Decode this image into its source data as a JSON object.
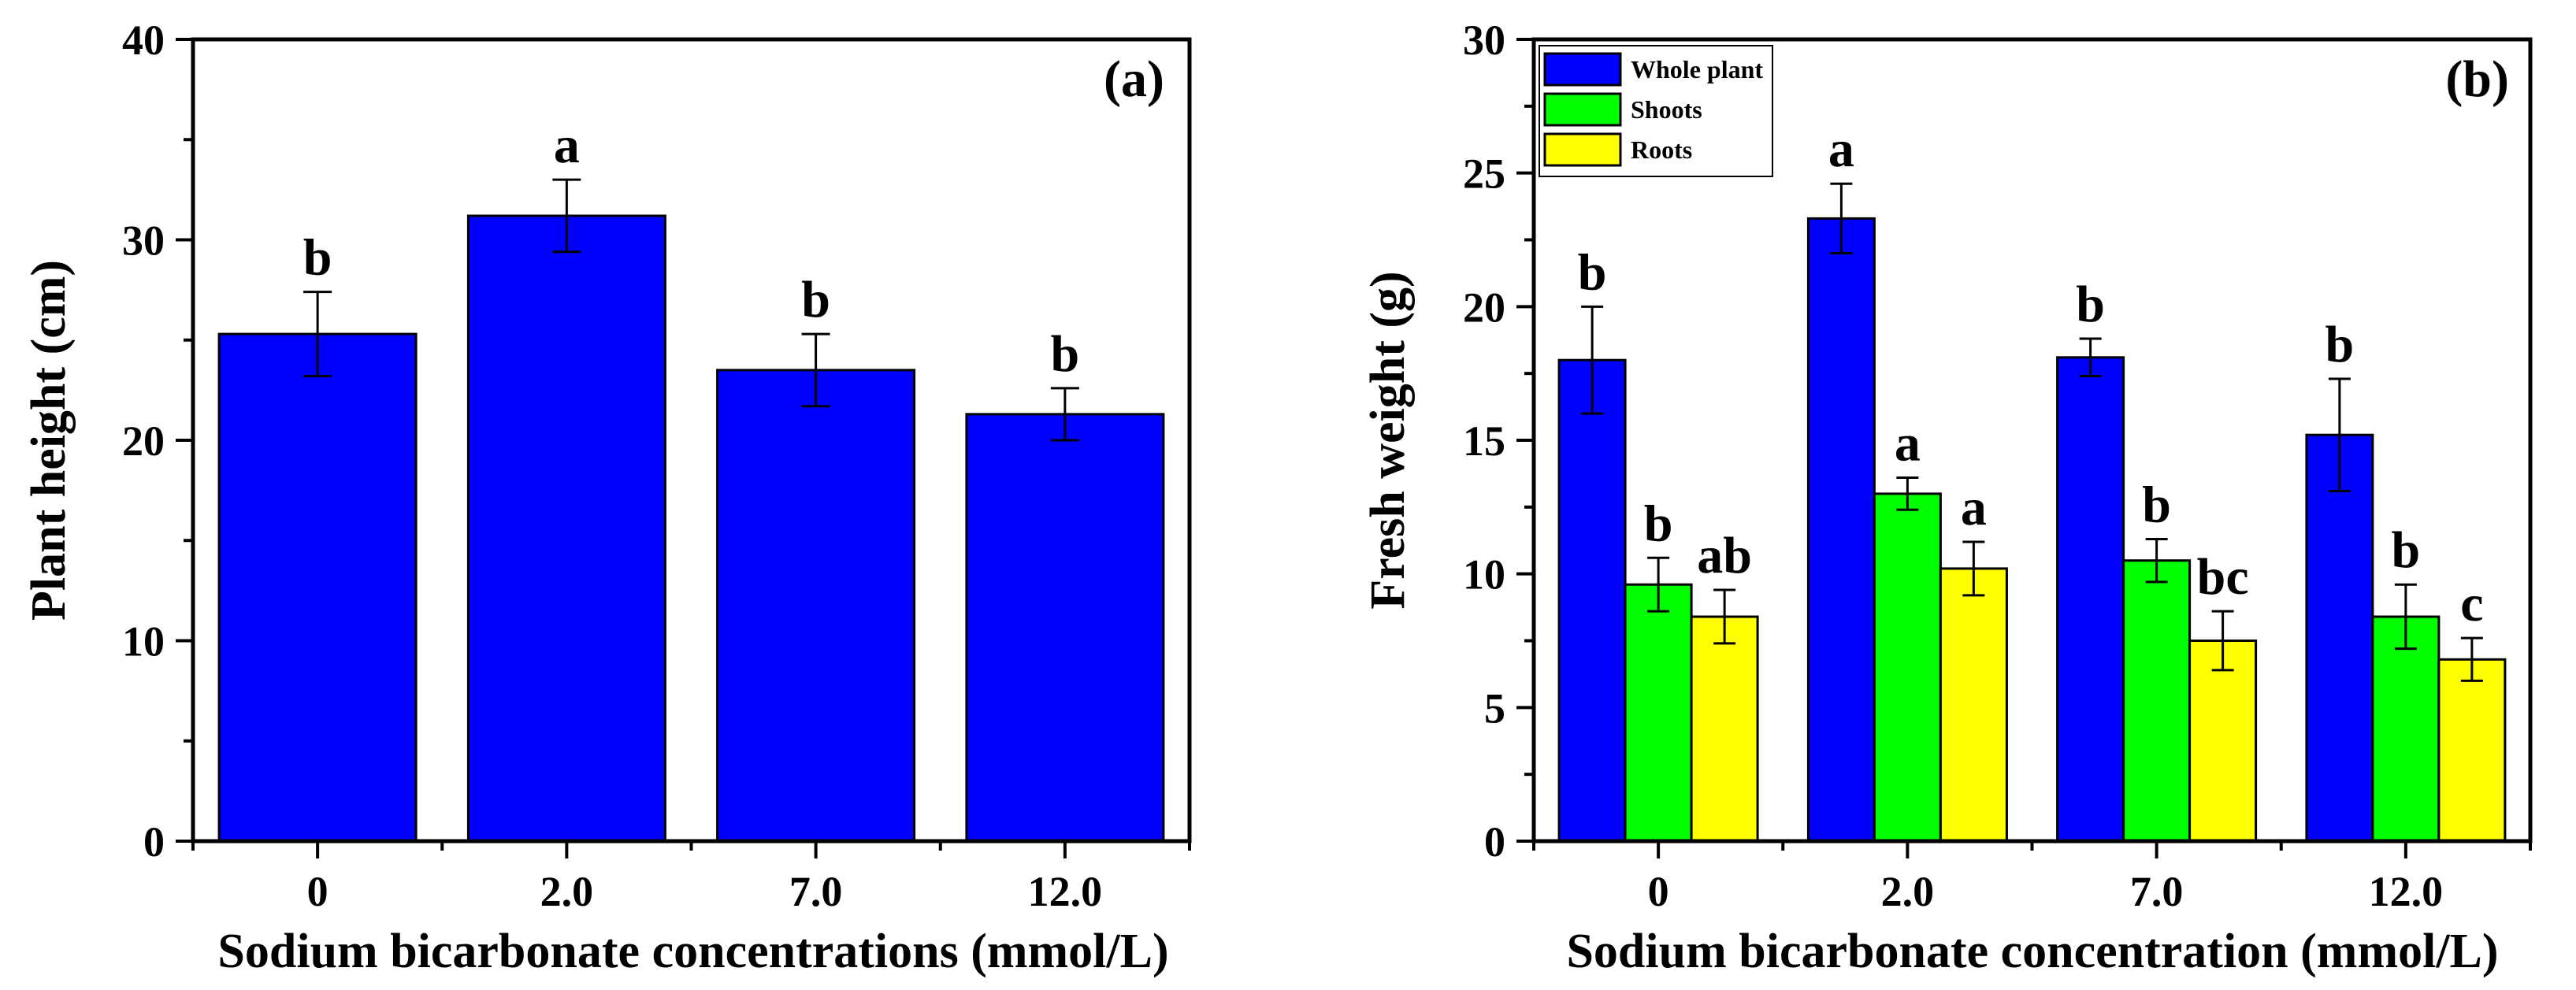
{
  "chart_data": [
    {
      "type": "bar",
      "panel_label": "(a)",
      "title": "",
      "xlabel": "Sodium bicarbonate concentrations (mmol/L)",
      "ylabel": "Plant height (cm)",
      "ylim": [
        0,
        40
      ],
      "yticks": [
        "0",
        "10",
        "20",
        "30",
        "40"
      ],
      "categories": [
        "0",
        "2.0",
        "7.0",
        "12.0"
      ],
      "series": [
        {
          "name": "Plant height",
          "color": "#0000ff",
          "values": [
            25.3,
            31.2,
            23.5,
            21.3
          ],
          "errors": [
            2.1,
            1.8,
            1.8,
            1.3
          ],
          "labels": [
            "b",
            "a",
            "b",
            "b"
          ]
        }
      ],
      "grid": false
    },
    {
      "type": "bar",
      "panel_label": "(b)",
      "title": "",
      "xlabel": "Sodium bicarbonate concentration (mmol/L)",
      "ylabel": "Fresh weight (g)",
      "ylim": [
        0,
        30
      ],
      "yticks": [
        "0",
        "5",
        "10",
        "15",
        "20",
        "25",
        "30"
      ],
      "categories": [
        "0",
        "2.0",
        "7.0",
        "12.0"
      ],
      "legend_position": "top-left",
      "series": [
        {
          "name": "Whole plant",
          "color": "#0000ff",
          "values": [
            18.0,
            23.3,
            18.1,
            15.2
          ],
          "errors": [
            2.0,
            1.3,
            0.7,
            2.1
          ],
          "labels": [
            "b",
            "a",
            "b",
            "b"
          ]
        },
        {
          "name": "Shoots",
          "color": "#00ff00",
          "values": [
            9.6,
            13.0,
            10.5,
            8.4
          ],
          "errors": [
            1.0,
            0.6,
            0.8,
            1.2
          ],
          "labels": [
            "b",
            "a",
            "b",
            "b"
          ]
        },
        {
          "name": "Roots",
          "color": "#ffff00",
          "values": [
            8.4,
            10.2,
            7.5,
            6.8
          ],
          "errors": [
            1.0,
            1.0,
            1.1,
            0.8
          ],
          "labels": [
            "ab",
            "a",
            "bc",
            "c"
          ]
        }
      ],
      "grid": false
    }
  ]
}
